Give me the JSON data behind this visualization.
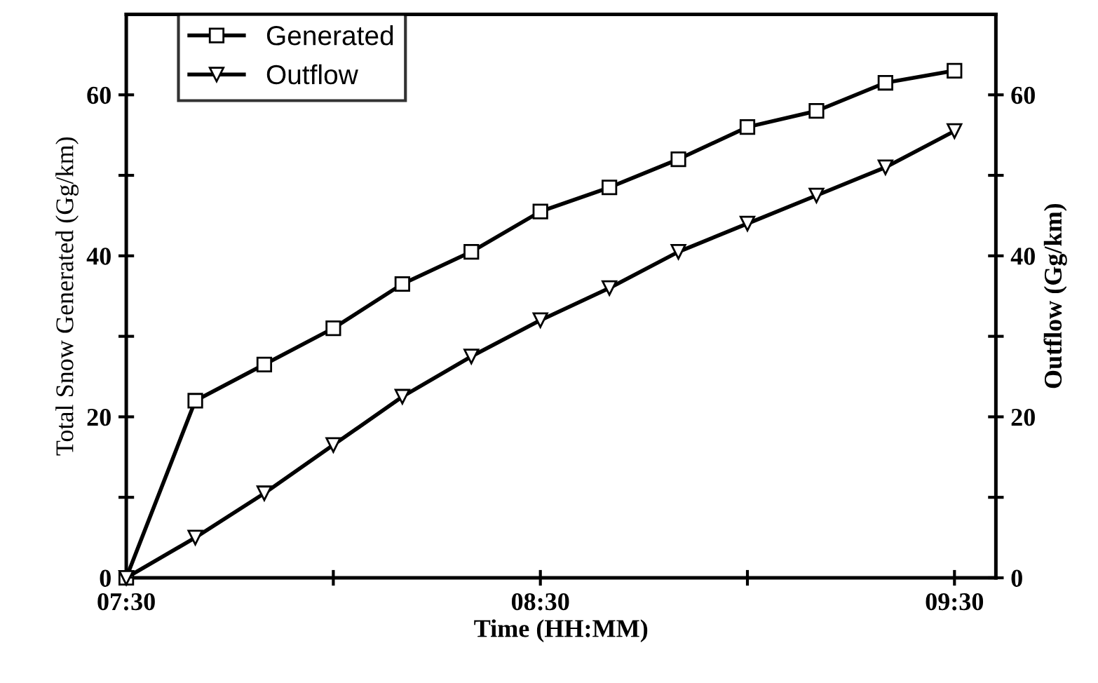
{
  "chart_data": {
    "type": "line",
    "xlabel": "Time (HH:MM)",
    "ylabel": "Total Snow Generated (Gg/km)",
    "y2label": "Outflow (Gg/km)",
    "x": [
      7.5,
      7.6667,
      7.8333,
      8.0,
      8.1667,
      8.3333,
      8.5,
      8.6667,
      8.8333,
      9.0,
      9.1667,
      9.3333,
      9.5
    ],
    "xlim": [
      7.5,
      9.6
    ],
    "xticks": [
      {
        "value": 7.5,
        "label": "07:30"
      },
      {
        "value": 8.0,
        "label": null
      },
      {
        "value": 8.5,
        "label": "08:30"
      },
      {
        "value": 9.0,
        "label": null
      },
      {
        "value": 9.5,
        "label": "09:30"
      }
    ],
    "ylim": [
      0,
      70
    ],
    "yticks": [
      0,
      {
        "value": 10,
        "label": null
      },
      20,
      {
        "value": 30,
        "label": null
      },
      40,
      {
        "value": 50,
        "label": null
      },
      60
    ],
    "y2lim": [
      0,
      70
    ],
    "y2ticks": [
      0,
      {
        "value": 10,
        "label": null
      },
      20,
      {
        "value": 30,
        "label": null
      },
      40,
      {
        "value": 50,
        "label": null
      },
      60
    ],
    "series": [
      {
        "name": "Generated",
        "color": "#000000",
        "marker": "square",
        "values": [
          0,
          22,
          26.5,
          31,
          36.5,
          40.5,
          45.5,
          48.5,
          52,
          56,
          58,
          61.5,
          63
        ]
      },
      {
        "name": "Outflow",
        "color": "#000000",
        "marker": "triangle",
        "axis": "y2",
        "values": [
          0,
          5,
          10.5,
          16.5,
          22.5,
          27.5,
          32,
          36,
          40.5,
          44,
          47.5,
          51,
          55.5
        ]
      }
    ],
    "legend": "top left",
    "grid": false,
    "line_style": "solid"
  }
}
